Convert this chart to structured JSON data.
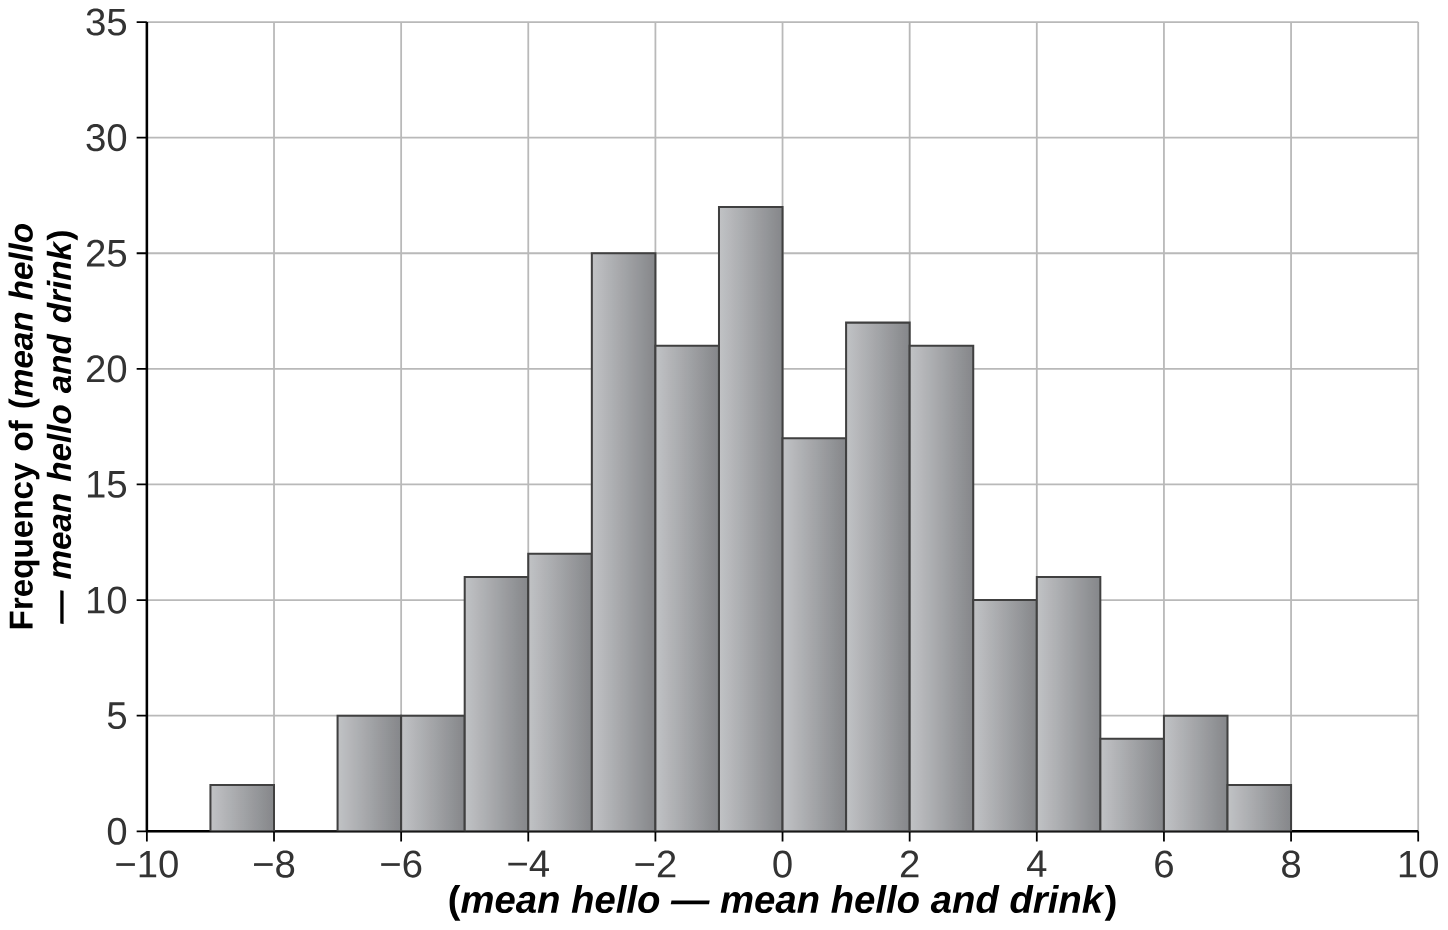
{
  "chart_data": {
    "type": "histogram",
    "xlabel": "(*mean hello — mean hello and drink*)",
    "ylabel": "Frequency of (*mean hello — mean hello and drink*)",
    "bins": [
      -9,
      -8,
      -7,
      -6,
      -5,
      -4,
      -3,
      -2,
      -1,
      0,
      1,
      2,
      3,
      4,
      5,
      6,
      7,
      8
    ],
    "values": [
      2,
      0,
      5,
      5,
      11,
      12,
      25,
      21,
      27,
      17,
      22,
      21,
      10,
      11,
      4,
      5,
      2
    ],
    "color": "#a7a9ad",
    "xlim": [
      -10,
      10
    ],
    "xticks": [
      {
        "value": -10,
        "label": "−10"
      },
      {
        "value": -8,
        "label": "−8"
      },
      {
        "value": -6,
        "label": "−6"
      },
      {
        "value": -4,
        "label": "−4"
      },
      {
        "value": -2,
        "label": "−2"
      },
      0,
      2,
      4,
      6,
      8,
      10
    ],
    "ylim": [
      0,
      35
    ],
    "yticks": [
      0,
      5,
      10,
      15,
      20,
      25,
      30,
      35
    ],
    "grid": true
  }
}
